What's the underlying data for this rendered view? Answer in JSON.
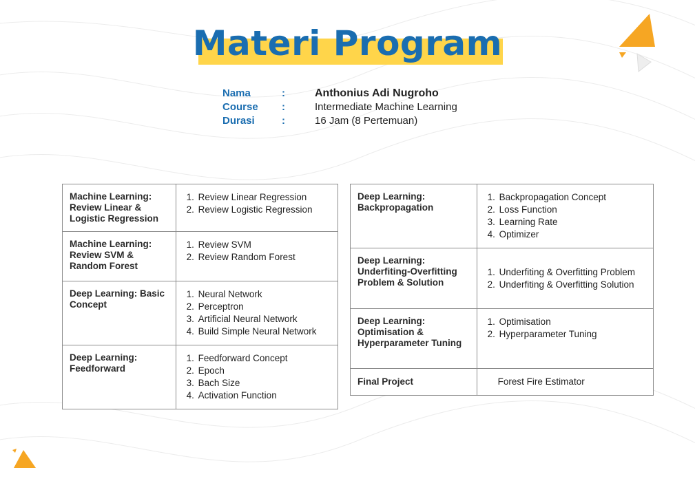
{
  "title": "Materi Program",
  "info": {
    "nama_label": "Nama",
    "nama_value": "Anthonius Adi Nugroho",
    "course_label": "Course",
    "course_value": "Intermediate Machine Learning",
    "durasi_label": "Durasi",
    "durasi_value": "16 Jam (8 Pertemuan)",
    "colon": ":"
  },
  "left_table": [
    {
      "topic": "Machine Learning: Review Linear & Logistic Regression",
      "items": [
        "Review Linear Regression",
        "Review Logistic Regression"
      ]
    },
    {
      "topic": "Machine Learning: Review SVM & Random Forest",
      "items": [
        "Review SVM",
        "Review Random Forest"
      ]
    },
    {
      "topic": "Deep Learning: Basic Concept",
      "items": [
        "Neural Network",
        "Perceptron",
        "Artificial Neural Network",
        "Build Simple Neural Network"
      ]
    },
    {
      "topic": "Deep Learning: Feedforward",
      "items": [
        "Feedforward Concept",
        "Epoch",
        "Bach Size",
        "Activation Function"
      ]
    }
  ],
  "right_table": [
    {
      "topic": "Deep Learning: Backpropagation",
      "items": [
        "Backpropagation Concept",
        "Loss Function",
        "Learning Rate",
        "Optimizer"
      ]
    },
    {
      "topic": "Deep Learning: Underfiting-Overfitting Problem & Solution",
      "items": [
        "Underfiting & Overfitting Problem",
        "Underfiting & Overfitting Solution"
      ]
    },
    {
      "topic": "Deep Learning: Optimisation & Hyperparameter Tuning",
      "items": [
        "Optimisation",
        "Hyperparameter Tuning"
      ]
    },
    {
      "topic": "Final Project",
      "text": "Forest Fire Estimator"
    }
  ],
  "colors": {
    "blue": "#1a6db0",
    "yellow": "#ffd54a",
    "orange": "#f6a623"
  }
}
